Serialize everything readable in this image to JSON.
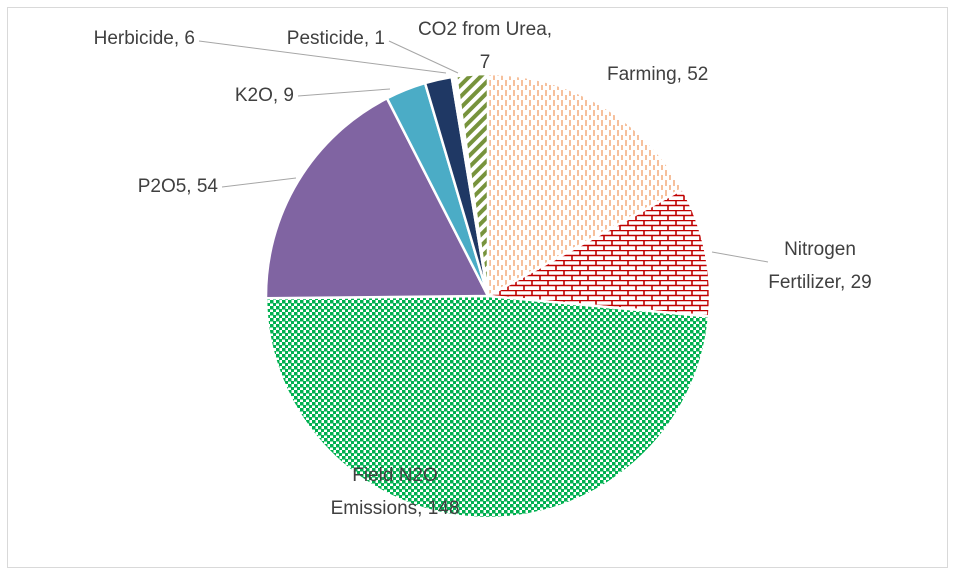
{
  "chart_data": {
    "type": "pie",
    "values": [
      52,
      29,
      148,
      54,
      9,
      6,
      1,
      7
    ],
    "value_labels": [
      "Farming, 52",
      "Nitrogen Fertilizer, 29",
      "Field N2O Emissions, 148",
      "P2O5, 54",
      "K2O, 9",
      "Herbicide, 6",
      "Pesticide, 1",
      "CO2 from Urea, 7"
    ],
    "colors": [
      "#f4b183",
      "#c00000",
      "#00b050",
      "#8064a2",
      "#4bacc6",
      "#1f3864",
      "#ffffff",
      "#77933c"
    ],
    "patterns": [
      "dashed-vertical",
      "brick",
      "dots",
      "solid",
      "solid",
      "solid",
      "solid",
      "diagonal-stripes"
    ],
    "start_angle": 0,
    "direction": "clockwise"
  }
}
